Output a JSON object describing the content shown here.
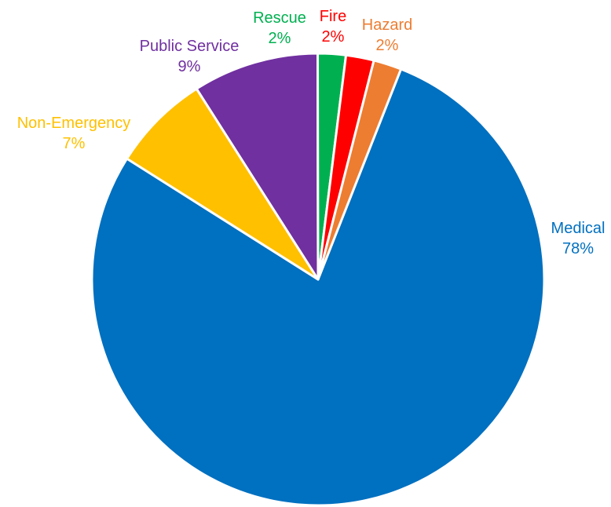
{
  "chart_data": {
    "type": "pie",
    "title": "",
    "slices": [
      {
        "label": "Medical",
        "value": 78,
        "value_label": "78%",
        "color": "#0070C0"
      },
      {
        "label": "Non-Emergency",
        "value": 7,
        "value_label": "7%",
        "color": "#FFC000"
      },
      {
        "label": "Public Service",
        "value": 9,
        "value_label": "9%",
        "color": "#7030A0"
      },
      {
        "label": "Rescue",
        "value": 2,
        "value_label": "2%",
        "color": "#00B050"
      },
      {
        "label": "Fire",
        "value": 2,
        "value_label": "2%",
        "color": "#FF0000"
      },
      {
        "label": "Hazard",
        "value": 2,
        "value_label": "2%",
        "color": "#ED7D31"
      }
    ],
    "legend": false,
    "slice_border_color": "#ffffff"
  }
}
